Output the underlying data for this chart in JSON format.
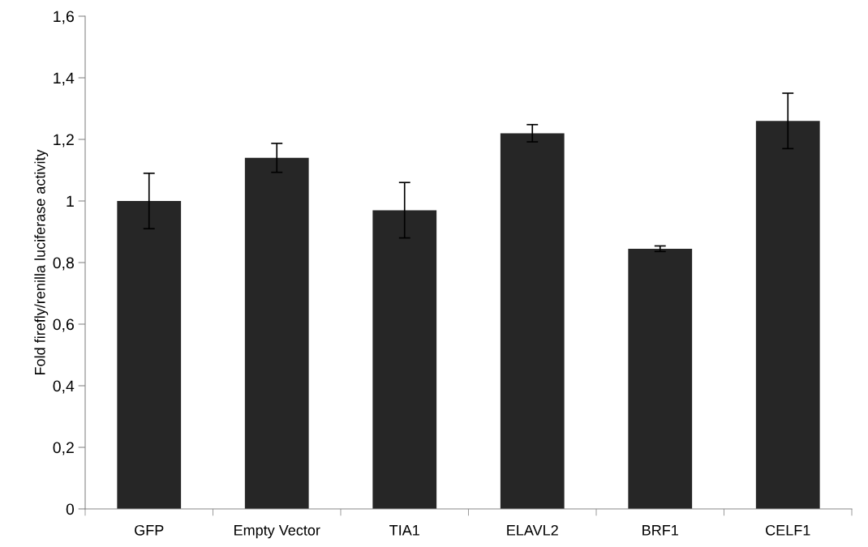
{
  "chart_data": {
    "type": "bar",
    "ylabel": "Fold firefly/renilla luciferase activity",
    "categories": [
      "GFP",
      "Empty Vector",
      "TIA1",
      "ELAVL2",
      "BRF1",
      "CELF1"
    ],
    "values": [
      1.0,
      1.14,
      0.97,
      1.22,
      0.845,
      1.26
    ],
    "errors": [
      0.09,
      0.047,
      0.09,
      0.028,
      0.009,
      0.09
    ],
    "color": "#262626",
    "ylim": [
      0,
      1.6
    ],
    "yticks": [
      0,
      {
        "value": 0.2,
        "label": "0,2"
      },
      {
        "value": 0.4,
        "label": "0,4"
      },
      {
        "value": 0.6,
        "label": "0,6"
      },
      {
        "value": 0.8,
        "label": "0,8"
      },
      1,
      {
        "value": 1.2,
        "label": "1,2"
      },
      {
        "value": 1.4,
        "label": "1,4"
      },
      {
        "value": 1.6,
        "label": "1,6"
      }
    ],
    "grid": false,
    "legend": false
  }
}
